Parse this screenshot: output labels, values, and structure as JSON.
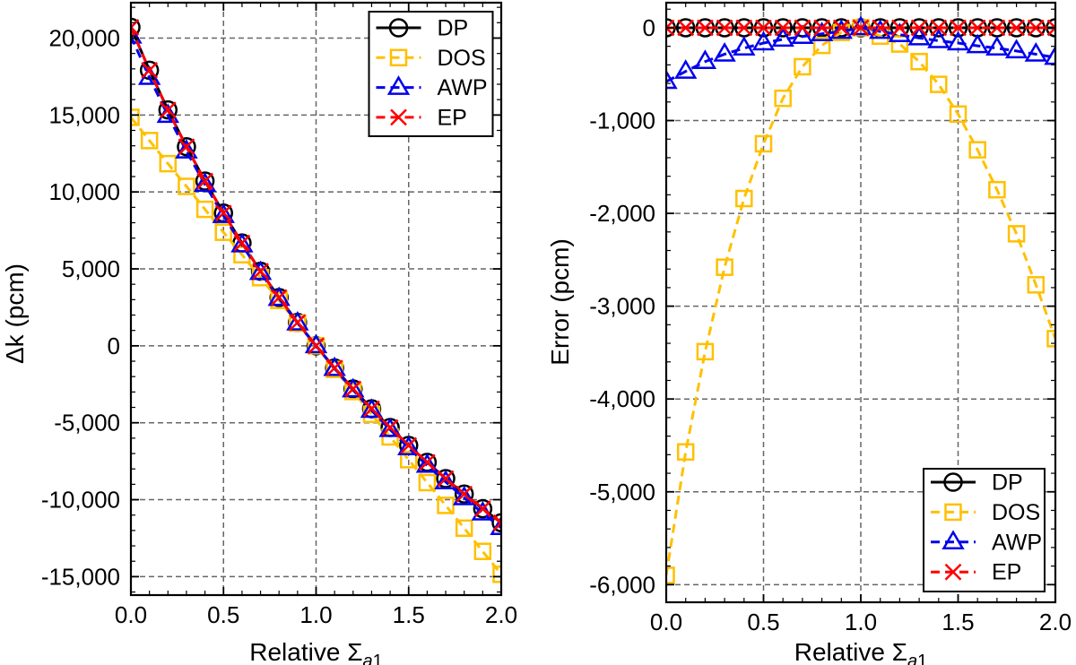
{
  "figure": {
    "background": "#ffffff",
    "frame_color": "#000000",
    "panel_count": 2
  },
  "chart_data": [
    {
      "id": "delta-k-panel",
      "type": "line",
      "title": "",
      "xlabel": "Relative Σ",
      "xlabel_sub": "a1",
      "ylabel": "Δk (pcm)",
      "xlim": [
        0,
        2
      ],
      "ylim": [
        -16200,
        22300
      ],
      "x_major_ticks": [
        0.0,
        0.5,
        1.0,
        1.5,
        2.0
      ],
      "x_tick_labels": [
        "0.0",
        "0.5",
        "1.0",
        "1.5",
        "2.0"
      ],
      "x_minor_step": 0.1,
      "y_major_ticks": [
        20000,
        15000,
        10000,
        5000,
        0,
        -5000,
        -10000,
        -15000
      ],
      "y_tick_labels": [
        "20,000",
        "15,000",
        "10,000",
        "5,000",
        "0",
        "-5,000",
        "-10,000",
        "-15,000"
      ],
      "y_minor_step": 1000,
      "grid": true,
      "grid_color": "#666666",
      "legend_position": "top-right",
      "x": [
        0.0,
        0.1,
        0.2,
        0.3,
        0.4,
        0.5,
        0.6,
        0.7,
        0.8,
        0.9,
        1.0,
        1.1,
        1.2,
        1.3,
        1.4,
        1.5,
        1.6,
        1.7,
        1.8,
        1.9,
        2.0
      ],
      "series": [
        {
          "name": "DP",
          "color": "#000000",
          "linestyle": "solid",
          "marker": "circle",
          "values": [
            20700,
            17910,
            15330,
            12940,
            10710,
            8630,
            6680,
            4850,
            3140,
            1520,
            0,
            -1440,
            -2800,
            -4090,
            -5310,
            -6470,
            -7570,
            -8630,
            -9630,
            -10590,
            -11500
          ]
        },
        {
          "name": "DOS",
          "color": "#FFC000",
          "linestyle": "dashed",
          "marker": "square",
          "values": [
            14850,
            13340,
            11840,
            10360,
            8870,
            7380,
            5920,
            4430,
            2950,
            1470,
            0,
            -1530,
            -2970,
            -4450,
            -5920,
            -7400,
            -8890,
            -10370,
            -11850,
            -13360,
            -14850
          ]
        },
        {
          "name": "AWP",
          "color": "#0000EE",
          "linestyle": "dashed",
          "marker": "triangle",
          "values": [
            20120,
            17440,
            14970,
            12650,
            10490,
            8460,
            6550,
            4760,
            3070,
            1480,
            0,
            -1480,
            -2870,
            -4200,
            -5450,
            -6630,
            -7770,
            -8850,
            -9880,
            -10870,
            -11820
          ]
        },
        {
          "name": "EP",
          "color": "#FF0000",
          "linestyle": "dashed",
          "marker": "x",
          "values": [
            20700,
            17910,
            15330,
            12940,
            10710,
            8630,
            6680,
            4850,
            3140,
            1520,
            0,
            -1440,
            -2800,
            -4090,
            -5310,
            -6470,
            -7570,
            -8630,
            -9630,
            -10590,
            -11500
          ]
        }
      ]
    },
    {
      "id": "error-panel",
      "type": "line",
      "title": "",
      "xlabel": "Relative Σ",
      "xlabel_sub": "a1",
      "ylabel": "Error (pcm)",
      "xlim": [
        0,
        2
      ],
      "ylim": [
        -6190,
        270
      ],
      "x_major_ticks": [
        0.0,
        0.5,
        1.0,
        1.5,
        2.0
      ],
      "x_tick_labels": [
        "0.0",
        "0.5",
        "1.0",
        "1.5",
        "2.0"
      ],
      "x_minor_step": 0.1,
      "y_major_ticks": [
        0,
        -1000,
        -2000,
        -3000,
        -4000,
        -5000,
        -6000
      ],
      "y_tick_labels": [
        "0",
        "-1,000",
        "-2,000",
        "-3,000",
        "-4,000",
        "-5,000",
        "-6,000"
      ],
      "y_minor_step": 200,
      "grid": true,
      "grid_color": "#666666",
      "legend_position": "bottom-right",
      "x": [
        0.0,
        0.1,
        0.2,
        0.3,
        0.4,
        0.5,
        0.6,
        0.7,
        0.8,
        0.9,
        1.0,
        1.1,
        1.2,
        1.3,
        1.4,
        1.5,
        1.6,
        1.7,
        1.8,
        1.9,
        2.0
      ],
      "series": [
        {
          "name": "DP",
          "color": "#000000",
          "linestyle": "solid",
          "marker": "circle",
          "values": [
            0,
            0,
            0,
            0,
            0,
            0,
            0,
            0,
            0,
            0,
            0,
            0,
            0,
            0,
            0,
            0,
            0,
            0,
            0,
            0,
            0
          ]
        },
        {
          "name": "DOS",
          "color": "#FFC000",
          "linestyle": "dashed",
          "marker": "square",
          "values": [
            -5900,
            -4570,
            -3490,
            -2580,
            -1840,
            -1250,
            -760,
            -420,
            -190,
            -50,
            0,
            -90,
            -175,
            -365,
            -610,
            -930,
            -1315,
            -1745,
            -2220,
            -2770,
            -3350
          ]
        },
        {
          "name": "AWP",
          "color": "#0000EE",
          "linestyle": "dashed",
          "marker": "triangle",
          "values": [
            -580,
            -470,
            -365,
            -285,
            -220,
            -165,
            -125,
            -95,
            -65,
            -40,
            0,
            -40,
            -75,
            -110,
            -140,
            -165,
            -195,
            -220,
            -250,
            -285,
            -320
          ]
        },
        {
          "name": "EP",
          "color": "#FF0000",
          "linestyle": "dashed",
          "marker": "x",
          "values": [
            0,
            0,
            0,
            0,
            0,
            0,
            0,
            0,
            0,
            0,
            0,
            0,
            0,
            0,
            0,
            0,
            0,
            0,
            0,
            0,
            0
          ]
        }
      ]
    }
  ]
}
